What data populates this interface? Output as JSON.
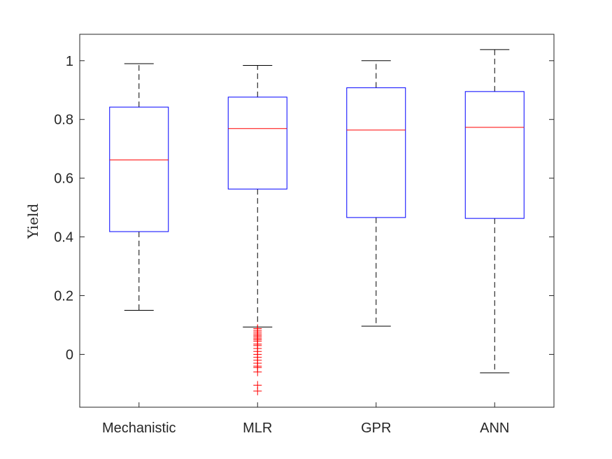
{
  "chart_data": {
    "type": "box",
    "title": "",
    "xlabel": "",
    "ylabel": "Yield",
    "ylim": [
      -0.18,
      1.09
    ],
    "yticks": [
      0,
      0.2,
      0.4,
      0.6,
      0.8,
      1
    ],
    "ytick_labels": [
      "0",
      "0.2",
      "0.4",
      "0.6",
      "0.8",
      "1"
    ],
    "categories": [
      "Mechanistic",
      "MLR",
      "GPR",
      "ANN"
    ],
    "boxes": [
      {
        "whisker_low": 0.15,
        "q1": 0.418,
        "median": 0.662,
        "q3": 0.842,
        "whisker_high": 0.99,
        "outliers": []
      },
      {
        "whisker_low": 0.093,
        "q1": 0.563,
        "median": 0.769,
        "q3": 0.876,
        "whisker_high": 0.984,
        "outliers": [
          0.088,
          0.082,
          0.076,
          0.07,
          0.065,
          0.06,
          0.055,
          0.05,
          0.045,
          0.035,
          0.03,
          0.02,
          0.01,
          0.0,
          -0.01,
          -0.02,
          -0.03,
          -0.04,
          -0.045,
          -0.06,
          -0.105,
          -0.125
        ]
      },
      {
        "whisker_low": 0.096,
        "q1": 0.466,
        "median": 0.764,
        "q3": 0.908,
        "whisker_high": 1.0,
        "outliers": []
      },
      {
        "whisker_low": -0.063,
        "q1": 0.463,
        "median": 0.773,
        "q3": 0.895,
        "whisker_high": 1.038,
        "outliers": []
      }
    ],
    "colors": {
      "box": "#0000ff",
      "median": "#ff0000",
      "whisker": "#000000",
      "outlier": "#ff0000",
      "axes": "#262626"
    },
    "grid": false,
    "legend": "none"
  }
}
